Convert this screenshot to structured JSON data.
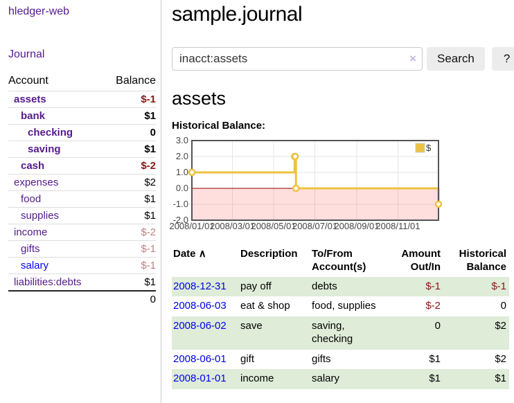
{
  "sidebar": {
    "app_title": "hledger-web",
    "journal_label": "Journal",
    "accounts_table": {
      "header": {
        "account": "Account",
        "balance": "Balance"
      },
      "rows": [
        {
          "name": "assets",
          "balance": "$-1",
          "indent": 0,
          "bold": true,
          "neg": "strong"
        },
        {
          "name": "bank",
          "balance": "$1",
          "indent": 1,
          "bold": true,
          "neg": "none"
        },
        {
          "name": "checking",
          "balance": "0",
          "indent": 2,
          "bold": true,
          "neg": "none"
        },
        {
          "name": "saving",
          "balance": "$1",
          "indent": 2,
          "bold": true,
          "neg": "none"
        },
        {
          "name": "cash",
          "balance": "$-2",
          "indent": 1,
          "bold": true,
          "neg": "strong"
        },
        {
          "name": "expenses",
          "balance": "$2",
          "indent": 0,
          "bold": false,
          "neg": "none"
        },
        {
          "name": "food",
          "balance": "$1",
          "indent": 1,
          "bold": false,
          "neg": "none"
        },
        {
          "name": "supplies",
          "balance": "$1",
          "indent": 1,
          "bold": false,
          "neg": "none"
        },
        {
          "name": "income",
          "balance": "$-2",
          "indent": 0,
          "bold": false,
          "neg": "soft"
        },
        {
          "name": "gifts",
          "balance": "$-1",
          "indent": 1,
          "bold": false,
          "neg": "soft"
        },
        {
          "name": "salary",
          "balance": "$-1",
          "indent": 1,
          "bold": false,
          "neg": "soft",
          "link_color": "blue"
        },
        {
          "name": "liabilities:debts",
          "balance": "$1",
          "indent": 0,
          "bold": false,
          "neg": "none"
        }
      ],
      "total": "0"
    }
  },
  "main": {
    "title": "sample.journal",
    "search": {
      "value": "inacct:assets",
      "clear_icon": "×",
      "button_label": "Search",
      "help_label": "?"
    },
    "section_title": "assets",
    "chart_label": "Historical Balance:"
  },
  "chart_data": {
    "type": "line",
    "step": true,
    "title": "Historical Balance",
    "series": [
      {
        "name": "$",
        "points": [
          [
            "2008-01-01",
            1
          ],
          [
            "2008-06-01",
            2
          ],
          [
            "2008-06-02",
            2
          ],
          [
            "2008-06-03",
            0
          ],
          [
            "2008-12-31",
            -1
          ]
        ]
      }
    ],
    "ylim": [
      -2.0,
      3.0
    ],
    "yticks": [
      "3.0",
      "2.0",
      "1.0",
      "0.0",
      "-1.0",
      "-2.0"
    ],
    "xticks": [
      "2008/01/01",
      "2008/03/01",
      "2008/05/01",
      "2008/07/01",
      "2008/09/01",
      "2008/11/01"
    ],
    "x_range": [
      "2008-01-01",
      "2008-12-31"
    ],
    "legend": {
      "label": "$",
      "position": "top-right"
    },
    "grid": true,
    "negative_region": true
  },
  "register_table": {
    "headers": {
      "date": "Date",
      "description": "Description",
      "accounts": "To/From Account(s)",
      "amount": "Amount Out/In",
      "balance": "Historical Balance"
    },
    "sort_icon": "∧",
    "rows": [
      {
        "date": "2008-12-31",
        "description": "pay off",
        "accounts": "debts",
        "amount": "$-1",
        "amount_negative": true,
        "balance": "$-1",
        "balance_negative": true,
        "shaded": true
      },
      {
        "date": "2008-06-03",
        "description": "eat & shop",
        "accounts": "food, supplies",
        "amount": "$-2",
        "amount_negative": true,
        "balance": "0",
        "balance_negative": false,
        "shaded": false
      },
      {
        "date": "2008-06-02",
        "description": "save",
        "accounts": "saving, checking",
        "amount": "0",
        "amount_negative": false,
        "balance": "$2",
        "balance_negative": false,
        "shaded": true
      },
      {
        "date": "2008-06-01",
        "description": "gift",
        "accounts": "gifts",
        "amount": "$1",
        "amount_negative": false,
        "balance": "$2",
        "balance_negative": false,
        "shaded": false
      },
      {
        "date": "2008-01-01",
        "description": "income",
        "accounts": "salary",
        "amount": "$1",
        "amount_negative": false,
        "balance": "$1",
        "balance_negative": false,
        "shaded": true
      }
    ]
  },
  "colors": {
    "purple_link": "#551a8b",
    "blue_link": "#0000ee",
    "negative_strong": "#8b1515",
    "negative_soft": "#bf8080",
    "row_shade_green": "#deecd8",
    "series_gold": "#edc240",
    "negative_region_pink": "rgba(255,0,0,0.13)",
    "gridline": "#e6e6e6",
    "chart_border": "#545454",
    "zero_line_red": "#8b0000",
    "sidebar_divider": "#cccccc",
    "button_gray": "#ececec"
  }
}
